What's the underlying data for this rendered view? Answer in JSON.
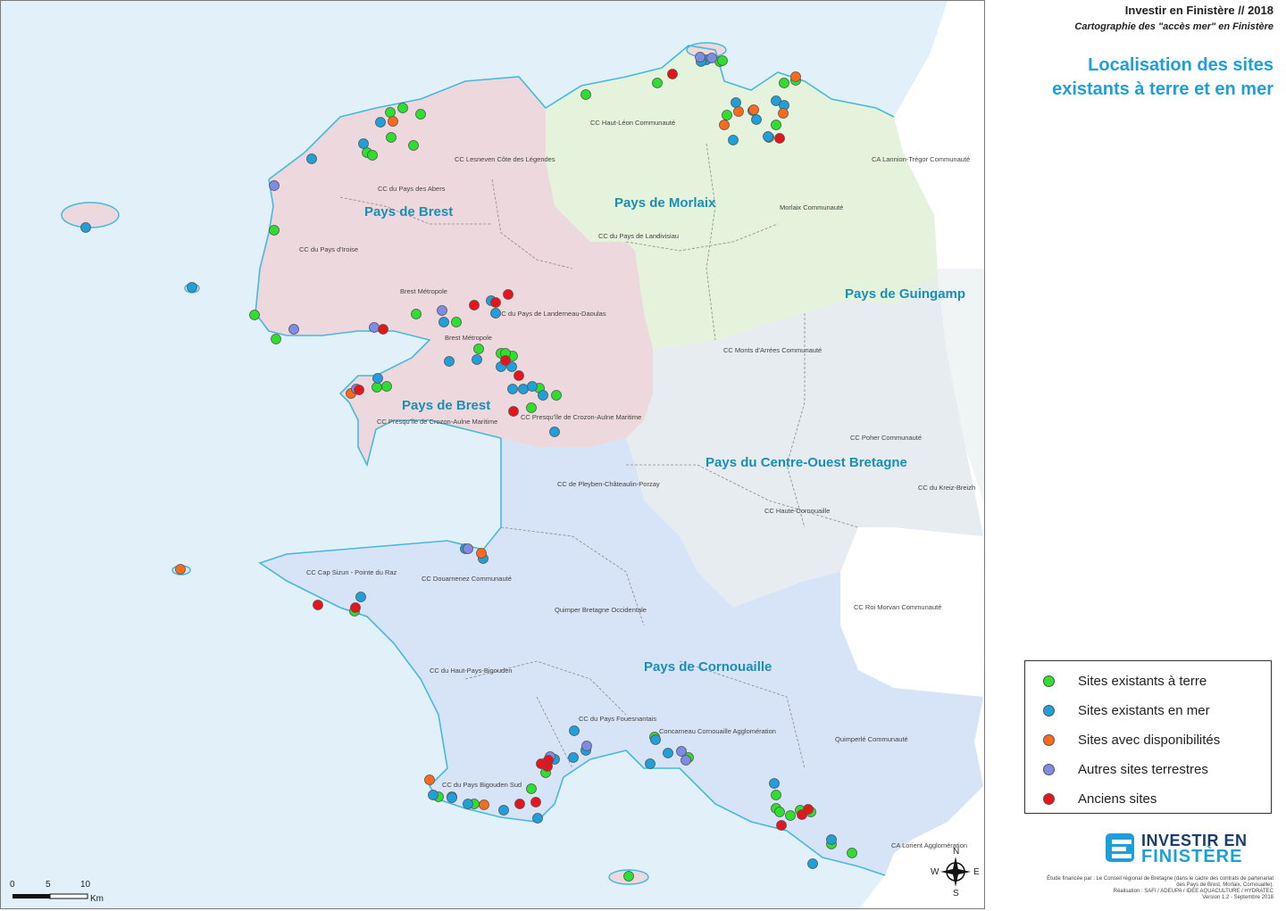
{
  "header": {
    "title": "Investir en Finistère // 2018",
    "subtitle": "Cartographie des \"accès mer\" en Finistère",
    "heading": "Localisation des sites existants à terre et en mer"
  },
  "colors": {
    "sea": "#e2f1f9",
    "brest": "#ecd8dd",
    "morlaix": "#e5f2dc",
    "cob": "#e6ecef",
    "cornouaille": "#d7e3f6",
    "outside": "#ffffff",
    "coast": "#45b9dc",
    "terre": "#2ee02e",
    "mer": "#1ea0dc",
    "dispo": "#ff6a1a",
    "autres": "#7f8ce6",
    "anciens": "#e8141c"
  },
  "pays_labels": {
    "brest_north": "Pays de Brest",
    "brest_south": "Pays de Brest",
    "morlaix": "Pays de Morlaix",
    "guingamp": "Pays de Guingamp",
    "cob": "Pays du Centre-Ouest Bretagne",
    "cornouaille": "Pays de Cornouaille"
  },
  "epci_labels": {
    "haut_leon": "CC Haut-Léon Communauté",
    "lesneven": "CC Lesneven Côte des Légendes",
    "abers": "CC du Pays des Abers",
    "iroise": "CC du Pays d'Iroise",
    "brest_metropole_1": "Brest Métropole",
    "brest_metropole_2": "Brest Métropole",
    "landerneau": "CC du Pays de Landerneau-Daoulas",
    "landivisiau": "CC du Pays de Landivisiau",
    "morlaix_co": "Morlaix Communauté",
    "lannion": "CA Lannion-Trégor Communauté",
    "monts_arrees": "CC Monts d'Arrées Communauté",
    "crozon_1": "CC Presqu'île de Crozon-Aulne Maritime",
    "crozon_2": "CC Presqu'île de Crozon-Aulne Maritime",
    "poher": "CC Poher Communauté",
    "kreiz_breizh": "CC du Kreiz-Breizh",
    "pleyben": "CC de Pleyben-Châteaulin-Porzay",
    "haute_cornouaille": "CC Haute-Cornouaille",
    "cap_sizun": "CC Cap Sizun - Pointe du Raz",
    "douarnenez": "CC Douarnenez Communauté",
    "roi_morvan": "CC Roi Morvan Communauté",
    "quimper": "Quimper Bretagne Occidentale",
    "haut_pays_bigouden": "CC du Haut-Pays-Bigouden",
    "fouesnantais": "CC du Pays Fouesnantais",
    "concarneau": "Concarneau Cornouaille Agglomération",
    "quimperle": "Quimperlé Communauté",
    "bigouden_sud": "CC du Pays Bigouden Sud",
    "lorient": "CA Lorient Agglomération"
  },
  "legend": [
    {
      "key": "terre",
      "label": "Sites existants à terre"
    },
    {
      "key": "mer",
      "label": "Sites existants en mer"
    },
    {
      "key": "dispo",
      "label": "Sites avec disponibilités"
    },
    {
      "key": "autres",
      "label": "Autres sites terrestres"
    },
    {
      "key": "anciens",
      "label": "Anciens sites"
    }
  ],
  "scale": {
    "labels": [
      "0",
      "5",
      "10"
    ],
    "unit": "Km"
  },
  "compass": {
    "n": "N",
    "s": "S",
    "e": "E",
    "w": "W"
  },
  "logo": {
    "line1": "INVESTIR EN",
    "line2": "FINISTÈRE"
  },
  "credits": [
    "Étude financée par : Le Conseil régional de Bretagne (dans le cadre des contrats de partenariat",
    "des Pays de Brest, Morlaix, Cornouaille).",
    "Réalisation : SAFI / ADEUPA / IDEE AQUACULTURE / HYDRATEC",
    "Version 1.2 - Septembre 2018"
  ],
  "sites": {
    "terre": [
      [
        655,
        105
      ],
      [
        735,
        92
      ],
      [
        436,
        125
      ],
      [
        450,
        120
      ],
      [
        470,
        127
      ],
      [
        437,
        153
      ],
      [
        462,
        162
      ],
      [
        410,
        170
      ],
      [
        416,
        173
      ],
      [
        306,
        257
      ],
      [
        284,
        352
      ],
      [
        308,
        379
      ],
      [
        465,
        351
      ],
      [
        510,
        360
      ],
      [
        535,
        390
      ],
      [
        573,
        398
      ],
      [
        560,
        395
      ],
      [
        603,
        434
      ],
      [
        622,
        442
      ],
      [
        432,
        432
      ],
      [
        421,
        433
      ],
      [
        594,
        456
      ],
      [
        813,
        128
      ],
      [
        868,
        139
      ],
      [
        860,
        153
      ],
      [
        805,
        68
      ],
      [
        808,
        67
      ],
      [
        877,
        92
      ],
      [
        890,
        89
      ],
      [
        868,
        905
      ],
      [
        872,
        909
      ],
      [
        884,
        913
      ],
      [
        907,
        909
      ],
      [
        930,
        945
      ],
      [
        953,
        955
      ],
      [
        868,
        890
      ],
      [
        895,
        907
      ],
      [
        732,
        825
      ],
      [
        770,
        848
      ],
      [
        610,
        865
      ],
      [
        396,
        684
      ],
      [
        490,
        892
      ],
      [
        505,
        892
      ],
      [
        703,
        981
      ],
      [
        594,
        883
      ],
      [
        530,
        900
      ],
      [
        565,
        395
      ]
    ],
    "mer": [
      [
        95,
        254
      ],
      [
        214,
        321
      ],
      [
        348,
        177
      ],
      [
        425,
        136
      ],
      [
        406,
        160
      ],
      [
        496,
        360
      ],
      [
        502,
        404
      ],
      [
        549,
        336
      ],
      [
        554,
        350
      ],
      [
        560,
        410
      ],
      [
        572,
        410
      ],
      [
        585,
        435
      ],
      [
        595,
        432
      ],
      [
        607,
        442
      ],
      [
        573,
        435
      ],
      [
        620,
        483
      ],
      [
        422,
        423
      ],
      [
        533,
        402
      ],
      [
        823,
        114
      ],
      [
        842,
        123
      ],
      [
        846,
        133
      ],
      [
        868,
        112
      ],
      [
        877,
        117
      ],
      [
        790,
        66
      ],
      [
        820,
        156
      ],
      [
        859,
        152
      ],
      [
        784,
        68
      ],
      [
        866,
        877
      ],
      [
        930,
        940
      ],
      [
        909,
        967
      ],
      [
        642,
        818
      ],
      [
        641,
        848
      ],
      [
        655,
        840
      ],
      [
        727,
        855
      ],
      [
        733,
        828
      ],
      [
        747,
        843
      ],
      [
        523,
        900
      ],
      [
        563,
        907
      ],
      [
        601,
        916
      ],
      [
        620,
        850
      ],
      [
        403,
        668
      ],
      [
        484,
        890
      ],
      [
        520,
        614
      ],
      [
        540,
        625
      ],
      [
        505,
        893
      ]
    ],
    "dispo": [
      [
        201,
        637
      ],
      [
        392,
        440
      ],
      [
        439,
        135
      ],
      [
        810,
        139
      ],
      [
        826,
        124
      ],
      [
        843,
        122
      ],
      [
        876,
        126
      ],
      [
        890,
        85
      ],
      [
        480,
        873
      ],
      [
        541,
        901
      ],
      [
        538,
        619
      ]
    ],
    "autres": [
      [
        306,
        207
      ],
      [
        494,
        347
      ],
      [
        418,
        366
      ],
      [
        328,
        368
      ],
      [
        523,
        614
      ],
      [
        783,
        63
      ],
      [
        796,
        64
      ],
      [
        656,
        835
      ],
      [
        762,
        841
      ],
      [
        767,
        851
      ],
      [
        615,
        847
      ],
      [
        398,
        435
      ]
    ],
    "anciens": [
      [
        428,
        368
      ],
      [
        401,
        436
      ],
      [
        530,
        341
      ],
      [
        554,
        338
      ],
      [
        568,
        329
      ],
      [
        565,
        403
      ],
      [
        580,
        420
      ],
      [
        574,
        460
      ],
      [
        752,
        82
      ],
      [
        872,
        154
      ],
      [
        355,
        677
      ],
      [
        397,
        680
      ],
      [
        581,
        900
      ],
      [
        599,
        898
      ],
      [
        613,
        851
      ],
      [
        612,
        858
      ],
      [
        605,
        855
      ],
      [
        874,
        924
      ],
      [
        897,
        912
      ],
      [
        904,
        906
      ]
    ]
  }
}
